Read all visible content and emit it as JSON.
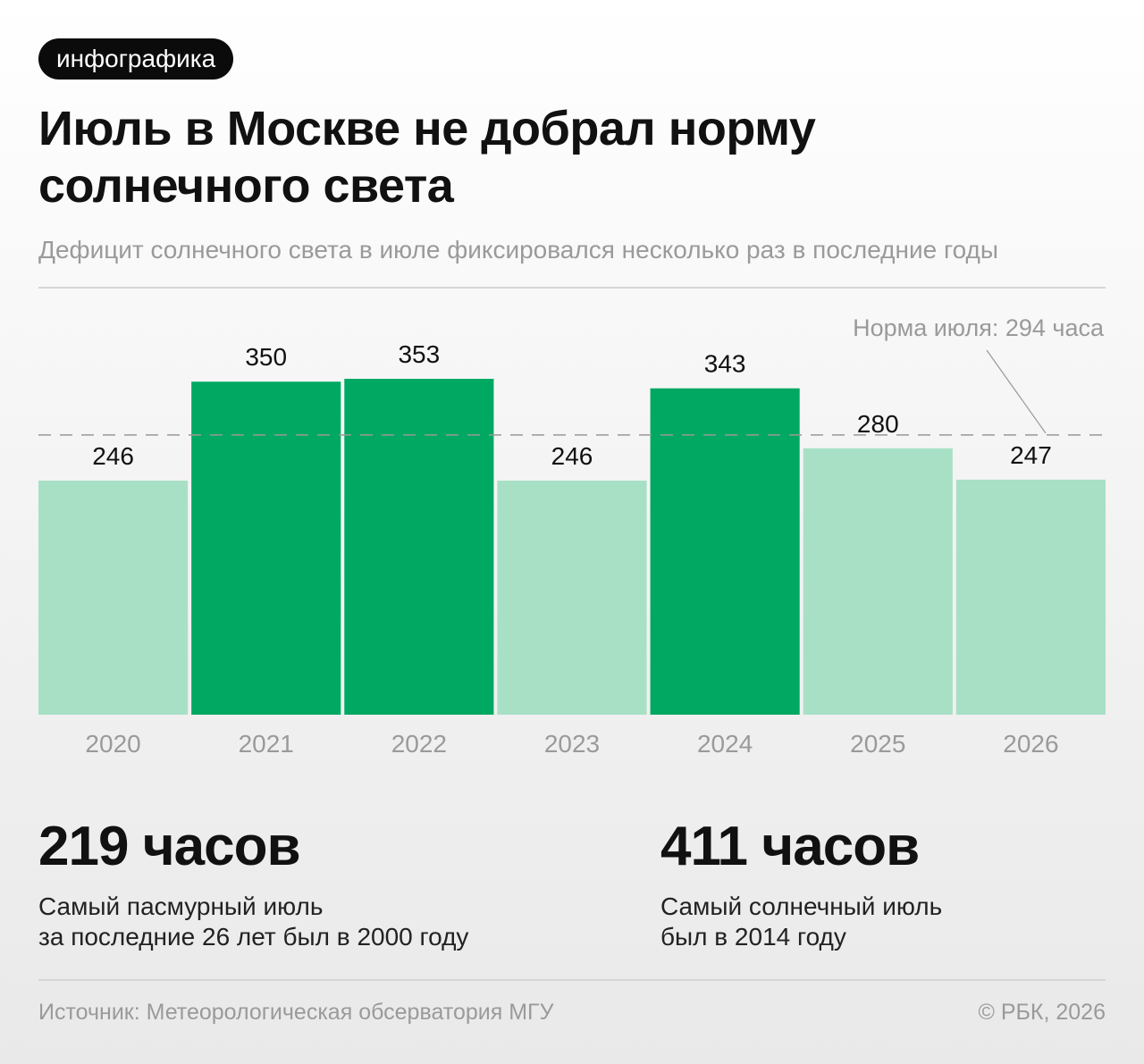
{
  "badge": "инфографика",
  "title": "Июль в Москве не добрал норму солнечного света",
  "subtitle": "Дефицит солнечного света в июле фиксировался несколько раз в последние годы",
  "chart_data": {
    "type": "bar",
    "categories": [
      "2020",
      "2021",
      "2022",
      "2023",
      "2024",
      "2025",
      "2026"
    ],
    "values": [
      246,
      350,
      353,
      246,
      343,
      280,
      247
    ],
    "data_labels": [
      "246",
      "350",
      "353",
      "246",
      "343",
      "280",
      "247"
    ],
    "reference_line": {
      "value": 294,
      "label": "Норма июля: 294 часа"
    },
    "colors": {
      "above_norm": "#00a862",
      "below_norm": "#a8e0c6",
      "reference": "#999999"
    },
    "title": "",
    "xlabel": "",
    "ylabel": "",
    "grid": false
  },
  "stats": [
    {
      "value": "219 часов",
      "description": [
        "Самый пасмурный июль",
        "за последние 26 лет был в 2000 году"
      ]
    },
    {
      "value": "411 часов",
      "description": [
        "Самый солнечный июль",
        "был в 2014 году"
      ]
    }
  ],
  "footer": {
    "source": "Источник: Метеорологическая обсерватория МГУ",
    "copyright": "© РБК, 2026"
  }
}
